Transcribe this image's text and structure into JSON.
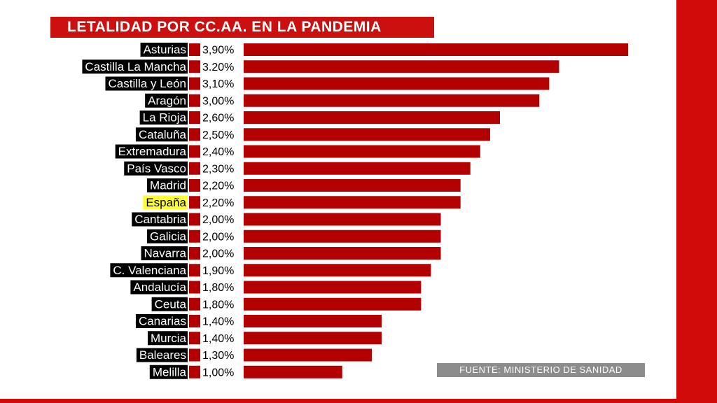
{
  "title": "LETALIDAD POR CC.AA. EN LA PANDEMIA",
  "source": "FUENTE:  MINISTERIO DE SANIDAD",
  "colors": {
    "bar": "#b30000",
    "label_bg": "#000000",
    "label_text": "#ffffff",
    "highlight_bg": "#ffff33",
    "highlight_text": "#000000",
    "frame": "#d10a0a",
    "title_bg": "#cc1010",
    "source_bg": "#8c8c8c"
  },
  "chart_data": {
    "type": "bar",
    "orientation": "horizontal",
    "highlight": "España",
    "grid": false,
    "legend": "none",
    "categories": [
      "Asturias",
      "Castilla La Mancha",
      "Castilla y León",
      "Aragón",
      "La Rioja",
      "Cataluña",
      "Extremadura",
      "País Vasco",
      "Madrid",
      "España",
      "Cantabria",
      "Galicia",
      "Navarra",
      "C. Valenciana",
      "Andalucía",
      "Ceuta",
      "Canarias",
      "Murcia",
      "Baleares",
      "Melilla"
    ],
    "values": [
      3.9,
      3.2,
      3.1,
      3.0,
      2.6,
      2.5,
      2.4,
      2.3,
      2.2,
      2.2,
      2.0,
      2.0,
      2.0,
      1.9,
      1.8,
      1.8,
      1.4,
      1.4,
      1.3,
      1.0
    ],
    "value_labels": [
      "3,90%",
      "3.20%",
      "3,10%",
      "3,00%",
      "2,60%",
      "2,50%",
      "2,40%",
      "2,30%",
      "2,20%",
      "2,20%",
      "2,00%",
      "2,00%",
      "2,00%",
      "1,90%",
      "1,80%",
      "1,80%",
      "1,40%",
      "1,40%",
      "1,30%",
      "1,00%"
    ],
    "unit": "%"
  }
}
